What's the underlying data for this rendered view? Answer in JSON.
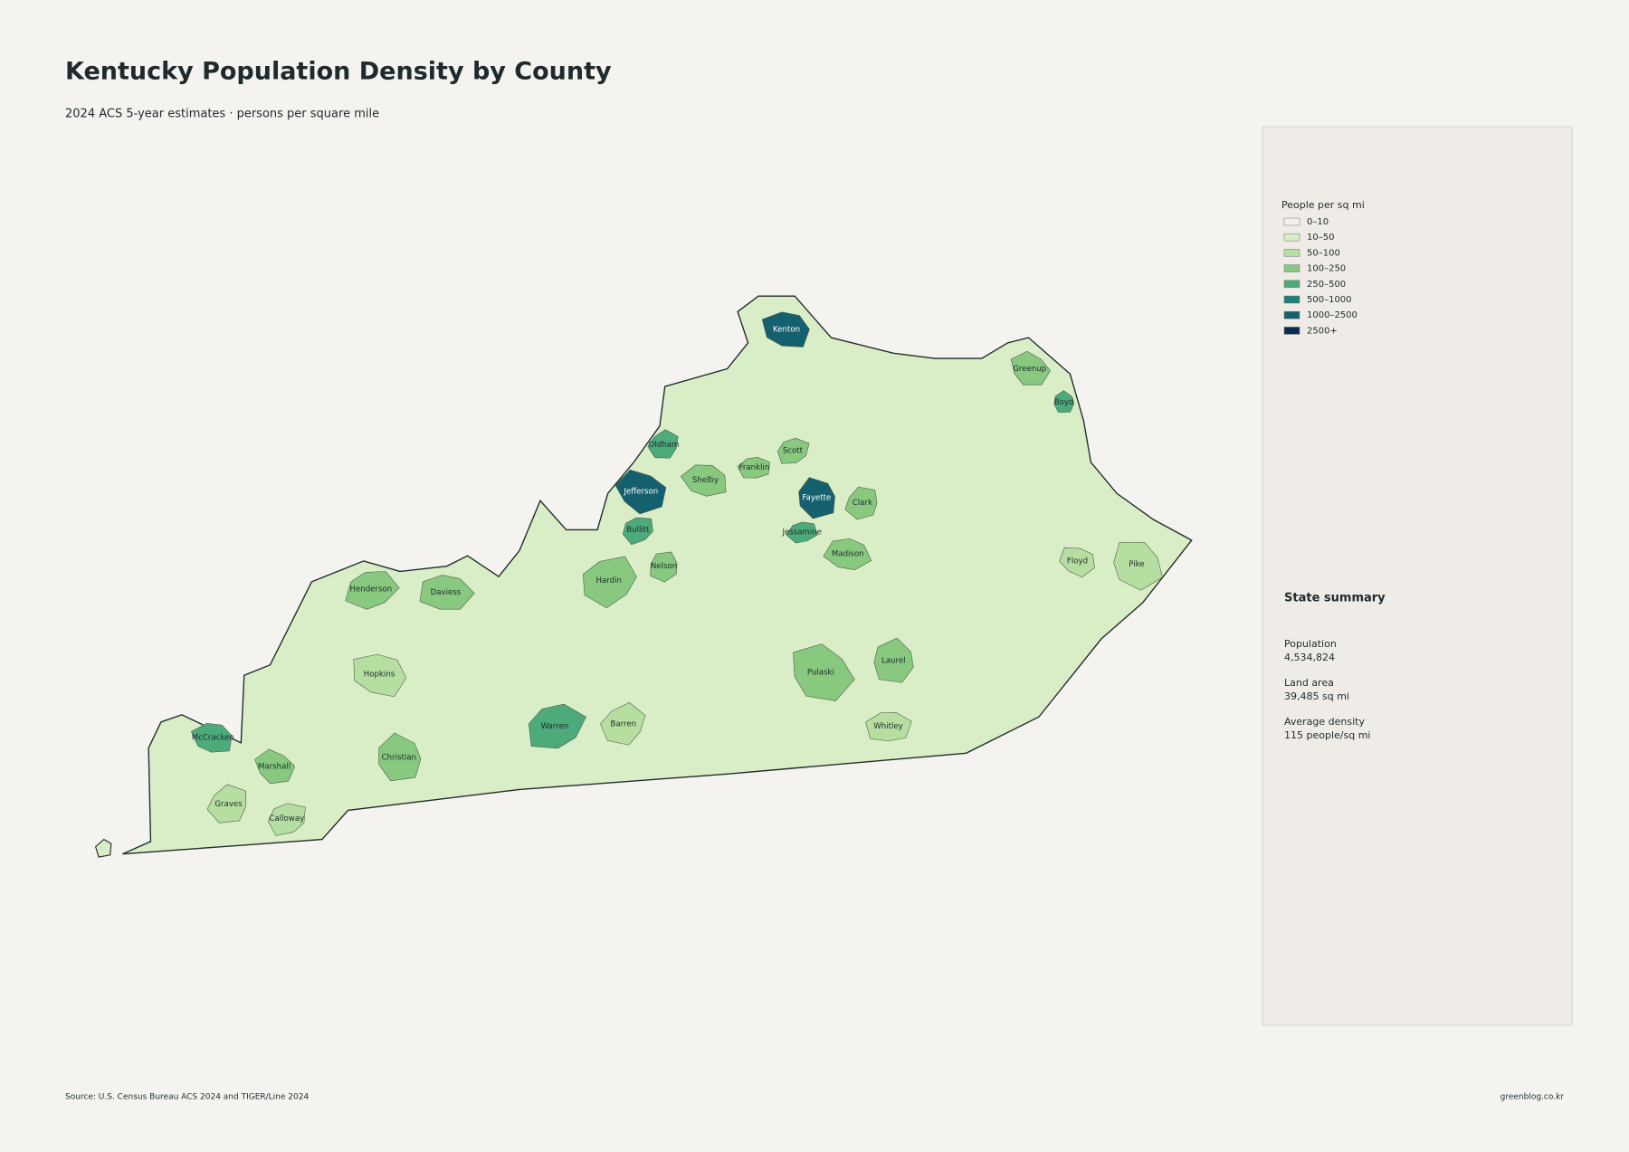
{
  "header": {
    "title": "Kentucky Population Density by County",
    "subtitle": "2024 ACS 5-year estimates · persons per square mile"
  },
  "map": {
    "land_color": "#d9edc6",
    "border_color": "#1f2d2d",
    "counties": [
      {
        "name": "Kenton",
        "color": "#15606f"
      },
      {
        "name": "Greenup",
        "color": "#88c87f"
      },
      {
        "name": "Boyd",
        "color": "#4daa7a"
      },
      {
        "name": "Oldham",
        "color": "#4daa7a"
      },
      {
        "name": "Scott",
        "color": "#88c87f"
      },
      {
        "name": "Franklin",
        "color": "#88c87f"
      },
      {
        "name": "Shelby",
        "color": "#88c87f"
      },
      {
        "name": "Jefferson",
        "color": "#15606f"
      },
      {
        "name": "Fayette",
        "color": "#15606f"
      },
      {
        "name": "Clark",
        "color": "#88c87f"
      },
      {
        "name": "Bullitt",
        "color": "#4daa7a"
      },
      {
        "name": "Jessamine",
        "color": "#4daa7a"
      },
      {
        "name": "Madison",
        "color": "#88c87f"
      },
      {
        "name": "Floyd",
        "color": "#b5dea0"
      },
      {
        "name": "Pike",
        "color": "#b5dea0"
      },
      {
        "name": "Nelson",
        "color": "#88c87f"
      },
      {
        "name": "Hardin",
        "color": "#88c87f"
      },
      {
        "name": "Henderson",
        "color": "#88c87f"
      },
      {
        "name": "Daviess",
        "color": "#88c87f"
      },
      {
        "name": "Hopkins",
        "color": "#b5dea0"
      },
      {
        "name": "Pulaski",
        "color": "#88c87f"
      },
      {
        "name": "Laurel",
        "color": "#88c87f"
      },
      {
        "name": "Barren",
        "color": "#b5dea0"
      },
      {
        "name": "Warren",
        "color": "#4daa7a"
      },
      {
        "name": "Whitley",
        "color": "#b5dea0"
      },
      {
        "name": "McCracken",
        "color": "#4daa7a"
      },
      {
        "name": "Marshall",
        "color": "#88c87f"
      },
      {
        "name": "Christian",
        "color": "#88c87f"
      },
      {
        "name": "Graves",
        "color": "#b5dea0"
      },
      {
        "name": "Calloway",
        "color": "#b5dea0"
      }
    ]
  },
  "legend": {
    "title": "People per sq mi",
    "items": [
      {
        "label": "0–10",
        "color": "#f3f0e8"
      },
      {
        "label": "10–50",
        "color": "#d9edc6"
      },
      {
        "label": "50–100",
        "color": "#b5dea0"
      },
      {
        "label": "100–250",
        "color": "#88c87f"
      },
      {
        "label": "250–500",
        "color": "#4daa7a"
      },
      {
        "label": "500–1000",
        "color": "#238077"
      },
      {
        "label": "1000–2500",
        "color": "#15606f"
      },
      {
        "label": "2500+",
        "color": "#0d2d4f"
      }
    ]
  },
  "summary": {
    "title": "State summary",
    "items": [
      {
        "label": "Population",
        "value": "4,534,824"
      },
      {
        "label": "Land area",
        "value": "39,485 sq mi"
      },
      {
        "label": "Average density",
        "value": "115 people/sq mi"
      }
    ]
  },
  "footer": {
    "source": "Source: U.S. Census Bureau ACS 2024 and TIGER/Line 2024",
    "credit": "greenblog.co.kr"
  }
}
